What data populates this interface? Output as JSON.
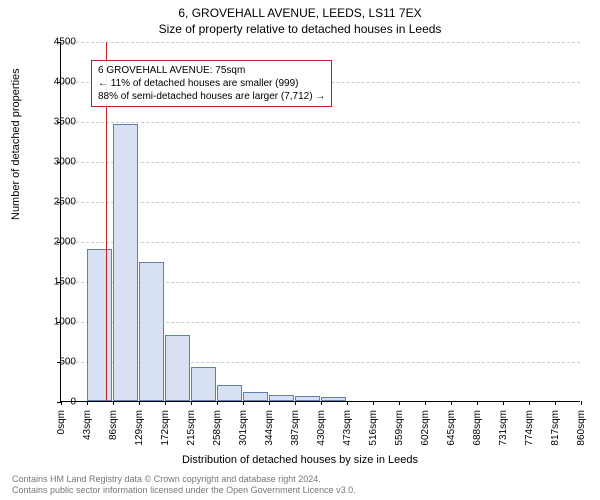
{
  "title": "6, GROVEHALL AVENUE, LEEDS, LS11 7EX",
  "subtitle": "Size of property relative to detached houses in Leeds",
  "ylabel": "Number of detached properties",
  "xlabel": "Distribution of detached houses by size in Leeds",
  "chart": {
    "type": "histogram",
    "bar_fill": "#d8e0f4",
    "bar_stroke": "#6080b0",
    "grid_color": "#cccccc",
    "background": "#ffffff",
    "marker_color": "#c02020",
    "ylim": [
      0,
      4500
    ],
    "ytick_step": 500,
    "x_ticks": [
      "0sqm",
      "43sqm",
      "86sqm",
      "129sqm",
      "172sqm",
      "215sqm",
      "258sqm",
      "301sqm",
      "344sqm",
      "387sqm",
      "430sqm",
      "473sqm",
      "516sqm",
      "559sqm",
      "602sqm",
      "645sqm",
      "688sqm",
      "731sqm",
      "774sqm",
      "817sqm",
      "860sqm"
    ],
    "values": [
      0,
      1900,
      3460,
      1740,
      830,
      430,
      200,
      110,
      80,
      60,
      50,
      0,
      0,
      0,
      0,
      0,
      0,
      0,
      0,
      0
    ],
    "marker_value": 75,
    "x_max": 860,
    "bin_width": 43,
    "title_fontsize": 12,
    "label_fontsize": 11,
    "tick_fontsize": 10
  },
  "annotation": {
    "line1": "6 GROVEHALL AVENUE: 75sqm",
    "line2": "← 11% of detached houses are smaller (999)",
    "line3": "88% of semi-detached houses are larger (7,712) →"
  },
  "footer": {
    "line1": "Contains HM Land Registry data © Crown copyright and database right 2024.",
    "line2": "Contains public sector information licensed under the Open Government Licence v3.0."
  }
}
